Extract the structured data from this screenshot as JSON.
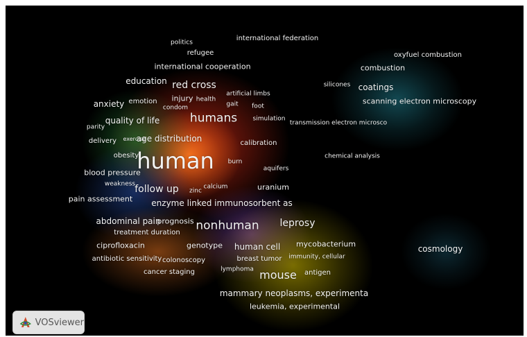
{
  "app": {
    "logo_text": "VOSviewer"
  },
  "colors": {
    "background": "#000000",
    "cluster_red": "#d7301f",
    "cluster_green": "#2e8b3a",
    "cluster_blue": "#2a4fa8",
    "cluster_yellow": "#c8b400",
    "cluster_purple": "#7b3fa0",
    "cluster_cyan": "#2aa6b8",
    "cluster_orange": "#e07820"
  },
  "terms": [
    {
      "label": "politics",
      "size": 9
    },
    {
      "label": "international federation",
      "size": 10
    },
    {
      "label": "refugee",
      "size": 10
    },
    {
      "label": "oxyfuel combustion",
      "size": 10
    },
    {
      "label": "combustion",
      "size": 11
    },
    {
      "label": "international cooperation",
      "size": 11
    },
    {
      "label": "education",
      "size": 12
    },
    {
      "label": "red cross",
      "size": 14
    },
    {
      "label": "silicones",
      "size": 9
    },
    {
      "label": "coatings",
      "size": 12
    },
    {
      "label": "artificial limbs",
      "size": 9
    },
    {
      "label": "injury",
      "size": 11
    },
    {
      "label": "health",
      "size": 9
    },
    {
      "label": "scanning electron microscopy",
      "size": 11
    },
    {
      "label": "anxiety",
      "size": 12
    },
    {
      "label": "emotion",
      "size": 10
    },
    {
      "label": "gait",
      "size": 9
    },
    {
      "label": "foot",
      "size": 9
    },
    {
      "label": "condom",
      "size": 9
    },
    {
      "label": "humans",
      "size": 17
    },
    {
      "label": "simulation",
      "size": 9
    },
    {
      "label": "transmission electron microsco",
      "size": 9
    },
    {
      "label": "quality of life",
      "size": 12
    },
    {
      "label": "parity",
      "size": 9
    },
    {
      "label": "delivery",
      "size": 10
    },
    {
      "label": "exercise",
      "size": 8
    },
    {
      "label": "age distribution",
      "size": 12
    },
    {
      "label": "calibration",
      "size": 10
    },
    {
      "label": "chemical analysis",
      "size": 9
    },
    {
      "label": "obesity",
      "size": 10
    },
    {
      "label": "human",
      "size": 32
    },
    {
      "label": "burn",
      "size": 9
    },
    {
      "label": "aquifers",
      "size": 9
    },
    {
      "label": "blood pressure",
      "size": 11
    },
    {
      "label": "weakness",
      "size": 9
    },
    {
      "label": "follow up",
      "size": 14
    },
    {
      "label": "zinc",
      "size": 9
    },
    {
      "label": "calcium",
      "size": 9
    },
    {
      "label": "uranium",
      "size": 11
    },
    {
      "label": "pain assessment",
      "size": 11
    },
    {
      "label": "enzyme linked immunosorbent as",
      "size": 12
    },
    {
      "label": "abdominal pain",
      "size": 12
    },
    {
      "label": "prognosis",
      "size": 11
    },
    {
      "label": "nonhuman",
      "size": 17
    },
    {
      "label": "leprosy",
      "size": 14
    },
    {
      "label": "treatment duration",
      "size": 10
    },
    {
      "label": "ciprofloxacin",
      "size": 11
    },
    {
      "label": "genotype",
      "size": 11
    },
    {
      "label": "human cell",
      "size": 12
    },
    {
      "label": "mycobacterium",
      "size": 11
    },
    {
      "label": "cosmology",
      "size": 12
    },
    {
      "label": "antibiotic sensitivity",
      "size": 10
    },
    {
      "label": "colonoscopy",
      "size": 10
    },
    {
      "label": "breast tumor",
      "size": 10
    },
    {
      "label": "immunity, cellular",
      "size": 9
    },
    {
      "label": "lymphoma",
      "size": 9
    },
    {
      "label": "mouse",
      "size": 16
    },
    {
      "label": "antigen",
      "size": 10
    },
    {
      "label": "cancer staging",
      "size": 10
    },
    {
      "label": "mammary neoplasms, experimenta",
      "size": 12
    },
    {
      "label": "leukemia, experimental",
      "size": 11
    }
  ]
}
